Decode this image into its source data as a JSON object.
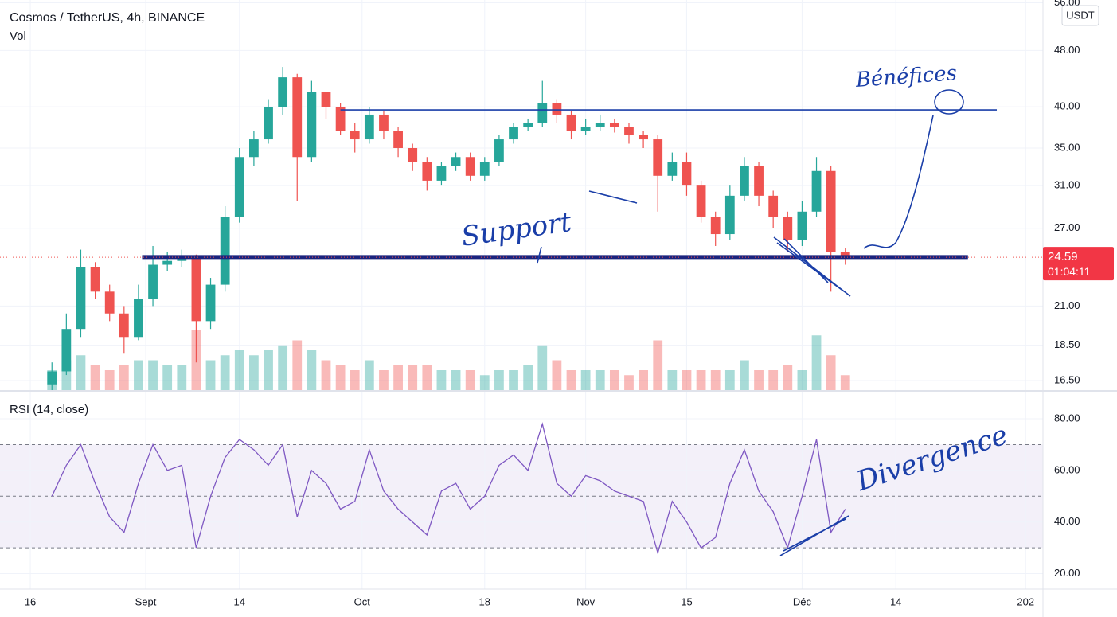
{
  "chart_data": {
    "type": "candlestick",
    "title": "Cosmos / TetherUS, 4h, BINANCE",
    "volume_label": "Vol",
    "currency": "USDT",
    "log_scale": true,
    "xlim": [
      -4.2,
      140.4
    ],
    "xticks": [
      {
        "value": 0,
        "label": "16"
      },
      {
        "value": 16,
        "label": "Sept"
      },
      {
        "value": 29,
        "label": "14"
      },
      {
        "value": 46,
        "label": "Oct"
      },
      {
        "value": 63,
        "label": "18"
      },
      {
        "value": 77,
        "label": "Nov"
      },
      {
        "value": 91,
        "label": "15"
      },
      {
        "value": 107,
        "label": "Déc"
      },
      {
        "value": 120,
        "label": "14"
      },
      {
        "value": 138,
        "label": "202"
      }
    ],
    "ylim": [
      16,
      56.5
    ],
    "yticks": [
      {
        "value": 16.5,
        "label": "16.50"
      },
      {
        "value": 18.5,
        "label": "18.50"
      },
      {
        "value": 21,
        "label": "21.00"
      },
      {
        "value": 27,
        "label": "27.00"
      },
      {
        "value": 31,
        "label": "31.00"
      },
      {
        "value": 35,
        "label": "35.00"
      },
      {
        "value": 40,
        "label": "40.00"
      },
      {
        "value": 48,
        "label": "48.00"
      },
      {
        "value": 56,
        "label": "56.00"
      }
    ],
    "up_color": "#26a69a",
    "down_color": "#ef5350",
    "x": [
      3,
      5,
      7,
      9,
      11,
      13,
      15,
      17,
      19,
      21,
      23,
      25,
      27,
      29,
      31,
      33,
      35,
      37,
      39,
      41,
      43,
      45,
      47,
      49,
      51,
      53,
      55,
      57,
      59,
      61,
      63,
      65,
      67,
      69,
      71,
      73,
      75,
      77,
      79,
      81,
      83,
      85,
      87,
      89,
      91,
      93,
      95,
      97,
      99,
      101,
      103,
      105,
      107,
      109,
      111,
      113
    ],
    "open": [
      16.3,
      17.0,
      19.5,
      23.8,
      22.0,
      20.5,
      19.0,
      21.5,
      24.0,
      24.3,
      24.5,
      20.0,
      22.5,
      28.0,
      34.0,
      36.0,
      40.0,
      44.0,
      34.0,
      42.0,
      40.0,
      37.0,
      36.0,
      39.0,
      37.0,
      35.0,
      33.5,
      31.5,
      33.0,
      34.0,
      32.0,
      33.5,
      36.0,
      37.5,
      38.0,
      40.5,
      39.0,
      37.0,
      37.5,
      38.0,
      37.5,
      36.5,
      36.0,
      32.0,
      33.5,
      31.0,
      28.0,
      26.5,
      30.0,
      33.0,
      30.0,
      28.0,
      26.0,
      28.5,
      32.5,
      25.0
    ],
    "high": [
      17.5,
      20.5,
      25.2,
      24.2,
      22.5,
      21.0,
      22.5,
      25.5,
      25.0,
      25.2,
      24.8,
      23.0,
      29.0,
      35.0,
      37.0,
      41.0,
      45.5,
      44.5,
      43.5,
      42.0,
      40.5,
      38.0,
      40.0,
      39.5,
      37.5,
      35.5,
      34.0,
      33.5,
      34.5,
      34.5,
      34.0,
      36.5,
      38.0,
      38.5,
      43.5,
      41.0,
      39.5,
      38.5,
      39.0,
      38.5,
      38.0,
      37.0,
      36.5,
      34.5,
      34.5,
      31.5,
      28.5,
      31.0,
      34.0,
      33.5,
      30.5,
      28.5,
      29.5,
      34.0,
      33.0,
      25.3
    ],
    "low": [
      16.0,
      16.8,
      19.0,
      21.5,
      20.0,
      18.0,
      18.8,
      21.0,
      23.5,
      23.8,
      17.5,
      19.5,
      22.0,
      27.5,
      33.0,
      35.5,
      39.0,
      29.5,
      33.5,
      38.5,
      36.5,
      34.5,
      35.5,
      36.0,
      34.0,
      32.5,
      30.5,
      31.0,
      32.5,
      31.5,
      31.5,
      33.0,
      35.5,
      37.0,
      37.5,
      38.0,
      36.0,
      36.5,
      37.0,
      36.8,
      35.5,
      35.0,
      28.5,
      31.5,
      30.0,
      27.5,
      25.5,
      26.0,
      29.5,
      29.0,
      27.0,
      25.0,
      25.5,
      28.0,
      22.0,
      24.0
    ],
    "close": [
      17.0,
      19.5,
      23.8,
      22.0,
      20.5,
      19.0,
      21.5,
      24.0,
      24.3,
      24.5,
      20.0,
      22.5,
      28.0,
      34.0,
      36.0,
      40.0,
      44.0,
      34.0,
      42.0,
      40.0,
      37.0,
      36.0,
      39.0,
      37.0,
      35.0,
      33.5,
      31.5,
      33.0,
      34.0,
      32.0,
      33.5,
      36.0,
      37.5,
      38.0,
      40.5,
      39.0,
      37.0,
      37.5,
      38.0,
      37.5,
      36.5,
      36.0,
      32.0,
      33.5,
      31.0,
      28.0,
      26.5,
      30.0,
      33.0,
      30.0,
      28.0,
      26.0,
      28.5,
      32.5,
      25.0,
      24.59
    ],
    "volume": [
      0.4,
      0.6,
      0.7,
      0.5,
      0.4,
      0.5,
      0.6,
      0.6,
      0.5,
      0.5,
      1.2,
      0.6,
      0.7,
      0.8,
      0.7,
      0.8,
      0.9,
      1.0,
      0.8,
      0.6,
      0.5,
      0.4,
      0.6,
      0.4,
      0.5,
      0.5,
      0.5,
      0.4,
      0.4,
      0.4,
      0.3,
      0.4,
      0.4,
      0.5,
      0.9,
      0.6,
      0.4,
      0.4,
      0.4,
      0.4,
      0.3,
      0.4,
      1.0,
      0.4,
      0.4,
      0.4,
      0.4,
      0.4,
      0.6,
      0.4,
      0.4,
      0.5,
      0.4,
      1.1,
      0.7,
      0.3
    ],
    "last_price": {
      "value": 24.59,
      "label": "24.59"
    },
    "countdown": "01:04:11",
    "levels": [
      {
        "name": "Support",
        "value": 24.6,
        "from": 15.5,
        "to": 130,
        "color": "#1a237e"
      },
      {
        "name": "Bénéfices",
        "value": 39.6,
        "from": 43,
        "to": 134,
        "color": "#1a3ea8"
      }
    ],
    "annotations": [
      "Support",
      "Bénéfices",
      "Divergence"
    ],
    "rsi": {
      "title": "RSI (14, close)",
      "color": "#7e57c2",
      "ylim": [
        14,
        90.5
      ],
      "yticks": [
        {
          "value": 20,
          "label": "20.00"
        },
        {
          "value": 40,
          "label": "40.00"
        },
        {
          "value": 60,
          "label": "60.00"
        },
        {
          "value": 80,
          "label": "80.00"
        }
      ],
      "levels": [
        70,
        50,
        30
      ],
      "values": [
        50,
        62,
        70,
        55,
        42,
        36,
        55,
        70,
        60,
        62,
        30,
        50,
        65,
        72,
        68,
        62,
        70,
        42,
        60,
        55,
        45,
        48,
        68,
        52,
        45,
        40,
        35,
        52,
        55,
        45,
        50,
        62,
        66,
        60,
        78,
        55,
        50,
        58,
        56,
        52,
        50,
        48,
        28,
        48,
        40,
        30,
        34,
        55,
        68,
        52,
        44,
        30,
        50,
        72,
        36,
        45
      ]
    }
  }
}
